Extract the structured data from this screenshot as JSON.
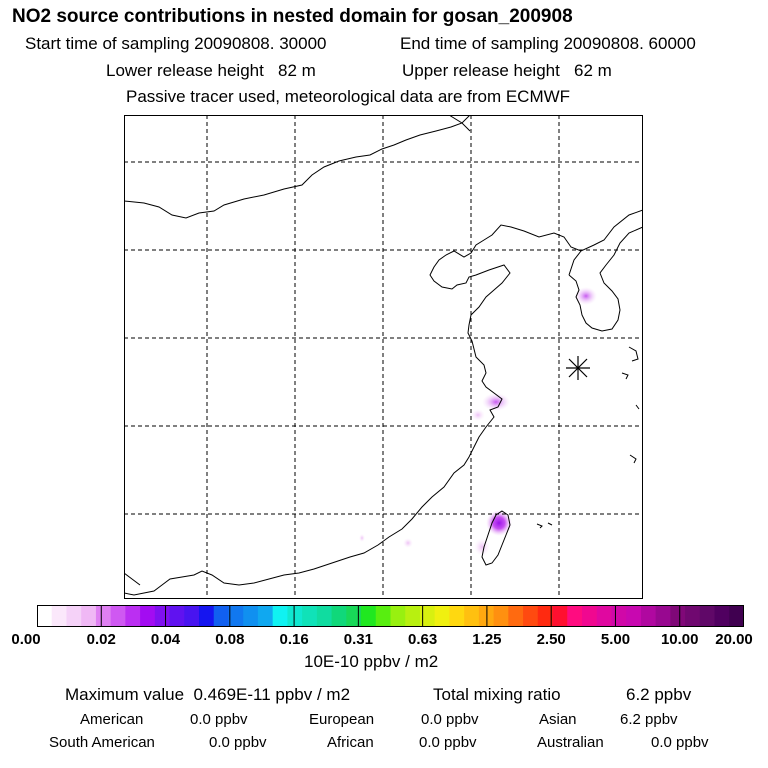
{
  "header": {
    "title": "NO2 source contributions in nested domain for gosan_200908",
    "start": "Start time of sampling 20090808. 30000",
    "end": "End time of sampling 20090808. 60000",
    "lower": "Lower release height   82 m",
    "upper": "Upper release height   62 m",
    "passive": "Passive tracer used, meteorological data are from ECMWF"
  },
  "colorbar": {
    "ticks": [
      "0.00",
      "0.02",
      "0.04",
      "0.08",
      "0.16",
      "0.31",
      "0.63",
      "1.25",
      "2.50",
      "5.00",
      "10.00",
      "20.00"
    ],
    "colors": [
      "#ffffff",
      "#fbe8fb",
      "#f5d2f8",
      "#f0b8f5",
      "#df80f2",
      "#cf58f2",
      "#bb2ff2",
      "#a30cf2",
      "#8010f0",
      "#6012f0",
      "#4814f0",
      "#1515f0",
      "#1160f0",
      "#1178f0",
      "#1090f0",
      "#10a8f0",
      "#10f2f2",
      "#10e8d0",
      "#10e2b8",
      "#10dca0",
      "#10d87a",
      "#18d858",
      "#20e820",
      "#58ee10",
      "#98f010",
      "#b8f010",
      "#d8f010",
      "#f0f010",
      "#ffd810",
      "#ffc010",
      "#ffa810",
      "#ff9010",
      "#ff6a10",
      "#ff4a10",
      "#ff2a10",
      "#ff1030",
      "#ff0c80",
      "#f00890",
      "#e008a0",
      "#d008a8",
      "#c808b0",
      "#b008a0",
      "#980890",
      "#800878",
      "#700870",
      "#600868",
      "#500060",
      "#400050"
    ],
    "units": "10E-10 ppbv / m2"
  },
  "summary": {
    "maximum": "Maximum value  0.469E-11 ppbv / m2",
    "total_label": "Total mixing ratio",
    "total_value": "6.2 ppbv",
    "regions": [
      {
        "name": "American",
        "value": "0.0 ppbv"
      },
      {
        "name": "European",
        "value": "0.0 ppbv"
      },
      {
        "name": "Asian",
        "value": "6.2 ppbv"
      },
      {
        "name": "South American",
        "value": "0.0 ppbv"
      },
      {
        "name": "African",
        "value": "0.0 ppbv"
      },
      {
        "name": "Australian",
        "value": "0.0 ppbv"
      }
    ]
  },
  "colors": {
    "plume": "#cc44ee",
    "plume_core": "#9b14ea"
  },
  "map": {
    "receptor": "gosan-receptor-marker"
  }
}
